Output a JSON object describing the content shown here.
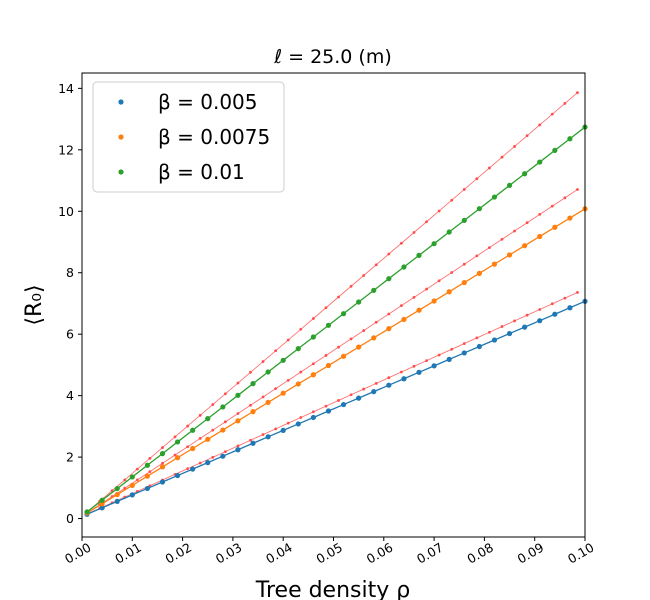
{
  "chart_data": {
    "type": "scatter",
    "title": "ℓ =  25.0 (m)",
    "xlabel": "Tree density ρ",
    "ylabel": "⟨R₀⟩",
    "xlim": [
      0.0,
      0.1
    ],
    "ylim": [
      -0.6,
      14.5
    ],
    "x_ticks": [
      "0.00",
      "0.01",
      "0.02",
      "0.03",
      "0.04",
      "0.05",
      "0.06",
      "0.07",
      "0.08",
      "0.09",
      "0.10"
    ],
    "y_ticks": [
      "0",
      "2",
      "4",
      "6",
      "8",
      "10",
      "12",
      "14"
    ],
    "grid": false,
    "legend_position": "upper-left",
    "x": [
      0.001,
      0.004,
      0.007,
      0.01,
      0.013,
      0.016,
      0.019,
      0.022,
      0.025,
      0.028,
      0.031,
      0.034,
      0.037,
      0.04,
      0.043,
      0.046,
      0.049,
      0.052,
      0.055,
      0.058,
      0.061,
      0.064,
      0.067,
      0.07,
      0.073,
      0.076,
      0.079,
      0.082,
      0.085,
      0.088,
      0.091,
      0.094,
      0.097,
      0.1
    ],
    "series": [
      {
        "name": "β =  0.005",
        "color": "#1f77b4",
        "slope": 70.0,
        "intercept": 0.07
      },
      {
        "name": "β =  0.0075",
        "color": "#ff7f0e",
        "slope": 100.0,
        "intercept": 0.08
      },
      {
        "name": "β =  0.01",
        "color": "#2ca02c",
        "slope": 126.5,
        "intercept": 0.09
      }
    ],
    "reference_lines": {
      "color": "#ff4d4d",
      "x_max": 0.0985,
      "slopes": [
        74.0,
        108.0,
        140.0
      ],
      "intercept": 0.07
    }
  }
}
